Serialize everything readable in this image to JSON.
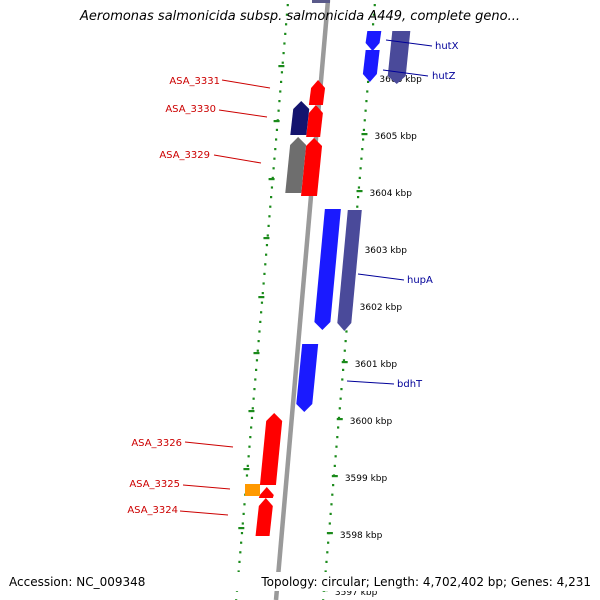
{
  "title": "Aeromonas salmonicida subsp. salmonicida A449, complete geno...",
  "footer": {
    "accession": "Accession: NC_009348",
    "summary": "Topology: circular; Length: 4,702,402 bp; Genes: 4,231"
  },
  "colors": {
    "background": "#ffffff",
    "backbone": "#9a9a9a",
    "dotted_ring": "#1a8a1a",
    "red_gene": "#ff0000",
    "blue_gene": "#1a1aff",
    "navy_gene": "#14146e",
    "slate_gene": "#4a4a9a",
    "gray_gene": "#6e6e6e",
    "orange_gene": "#ff9900",
    "red_label": "#cc0000",
    "blue_label": "#000099"
  },
  "ticks": [
    {
      "label": "3606 kbp"
    },
    {
      "label": "3605 kbp"
    },
    {
      "label": "3604 kbp"
    },
    {
      "label": "3603 kbp"
    },
    {
      "label": "3602 kbp"
    },
    {
      "label": "3601 kbp"
    },
    {
      "label": "3600 kbp"
    },
    {
      "label": "3599 kbp"
    },
    {
      "label": "3598 kbp"
    },
    {
      "label": "3597 kbp"
    }
  ],
  "reverse_labels": [
    {
      "text": "ASA_3331"
    },
    {
      "text": "ASA_3330"
    },
    {
      "text": "ASA_3329"
    },
    {
      "text": "ASA_3326"
    },
    {
      "text": "ASA_3325"
    },
    {
      "text": "ASA_3324"
    }
  ],
  "forward_labels": [
    {
      "text": "hutX"
    },
    {
      "text": "hutZ"
    },
    {
      "text": "hupA"
    },
    {
      "text": "bdhT"
    }
  ]
}
